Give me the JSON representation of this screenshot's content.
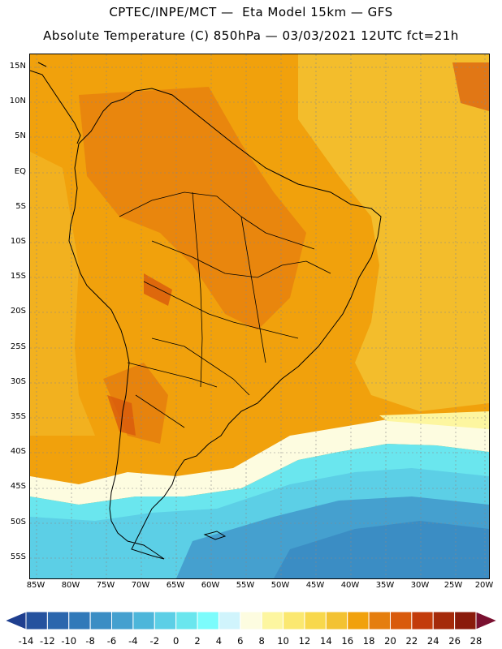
{
  "header": {
    "line1": "CPTEC/INPE/MCT —  Eta Model 15km — GFS",
    "line2": "Absolute Temperature (C) 850hPa — 03/03/2021 12UTC fct=21h"
  },
  "axes": {
    "lat_labels": [
      "15N",
      "10N",
      "5N",
      "EQ",
      "5S",
      "10S",
      "15S",
      "20S",
      "25S",
      "30S",
      "35S",
      "40S",
      "45S",
      "50S",
      "55S"
    ],
    "lon_labels": [
      "85W",
      "80W",
      "75W",
      "70W",
      "65W",
      "60W",
      "55W",
      "50W",
      "45W",
      "40W",
      "35W",
      "30W",
      "25W",
      "20W"
    ]
  },
  "legend": {
    "labels": [
      "-14",
      "-12",
      "-10",
      "-8",
      "-6",
      "-4",
      "-2",
      "0",
      "2",
      "4",
      "6",
      "8",
      "10",
      "12",
      "14",
      "16",
      "18",
      "20",
      "22",
      "24",
      "26",
      "28"
    ],
    "colors": [
      "#1f3f8f",
      "#25529e",
      "#2b66ad",
      "#3179b9",
      "#3b8dc4",
      "#45a0cf",
      "#4db6da",
      "#5ccfe6",
      "#6ae6ee",
      "#7cfcfc",
      "#d0f4fc",
      "#fdfce0",
      "#fdf6a0",
      "#fbe870",
      "#f8d84c",
      "#f3c232",
      "#f1a10c",
      "#e57e0e",
      "#d95a0c",
      "#c33c0b",
      "#a52a0a",
      "#8a1b0b",
      "#7a1030"
    ]
  },
  "colors": {
    "warm_field": "#f1a10c",
    "hot_field": "#e57e0e",
    "mild_field": "#f3c232",
    "cool_field": "#5ccfe6",
    "cold_field": "#3b8dc4"
  }
}
